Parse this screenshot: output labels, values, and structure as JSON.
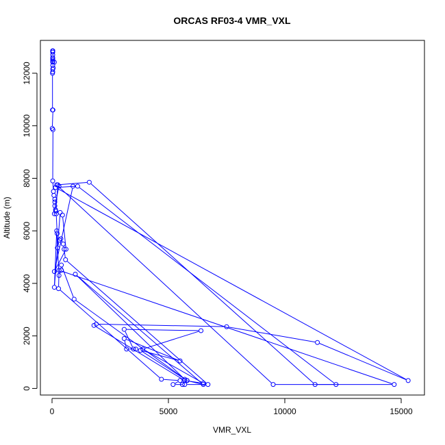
{
  "chart_data": {
    "type": "scatter",
    "title": "ORCAS RF03-4 VMR_VXL",
    "xlabel": "VMR_VXL",
    "ylabel": "Altitude (m)",
    "xlim": [
      -500,
      16000
    ],
    "ylim": [
      -250,
      13250
    ],
    "xticks": [
      0,
      5000,
      10000,
      15000
    ],
    "xtick_labels": [
      "0",
      "5000",
      "10000",
      "15000"
    ],
    "yticks": [
      0,
      2000,
      4000,
      6000,
      8000,
      10000,
      12000
    ],
    "ytick_labels": [
      "0",
      "2000",
      "4000",
      "6000",
      "8000",
      "10000",
      "12000"
    ],
    "grid": false,
    "legend": "none",
    "colors": {
      "series": "#0000ff",
      "axis": "#000000",
      "background": "#ffffff"
    },
    "series": [
      {
        "style": "lines+open-circles",
        "x": [
          30,
          30,
          30,
          30,
          30,
          30,
          30,
          30,
          30,
          30,
          30,
          30,
          30,
          30,
          30,
          30,
          30,
          30,
          30,
          100,
          30,
          50,
          30,
          30,
          20,
          20,
          40,
          10,
          40,
          30,
          60,
          80,
          120,
          120,
          150,
          160,
          250,
          300,
          120,
          100,
          180,
          220,
          230,
          320,
          380,
          480,
          520,
          580,
          6700,
          5700,
          5200,
          5500,
          4700,
          280,
          300,
          14700,
          11300,
          1600,
          200,
          9500,
          12200,
          1100,
          150,
          15300,
          11400,
          7500,
          1900,
          1800,
          5700,
          6500,
          3900,
          6400,
          3100,
          3500,
          3600,
          3200,
          3100,
          5500,
          3800,
          5800,
          5600,
          5800,
          5700,
          1000,
          6500,
          5800,
          950,
          400,
          400,
          300,
          200,
          100,
          350,
          450,
          600,
          100,
          900
        ],
        "y": [
          12850,
          12850,
          12850,
          12850,
          12850,
          12850,
          12850,
          12850,
          12850,
          12850,
          12850,
          12850,
          12800,
          12700,
          12600,
          12550,
          12500,
          12450,
          12420,
          12420,
          12300,
          12200,
          12150,
          12050,
          12000,
          10600,
          10600,
          9900,
          9850,
          7900,
          7500,
          7350,
          7200,
          7100,
          6800,
          6750,
          7750,
          7700,
          6950,
          6650,
          6650,
          5900,
          5350,
          5650,
          5700,
          5500,
          5300,
          4900,
          150,
          150,
          150,
          300,
          350,
          3800,
          4500,
          150,
          150,
          7850,
          7750,
          150,
          150,
          7700,
          7650,
          300,
          1750,
          2350,
          2450,
          2400,
          300,
          200,
          1500,
          2200,
          2250,
          1500,
          1500,
          1500,
          1900,
          1050,
          1450,
          300,
          150,
          300,
          350,
          4350,
          150,
          300,
          3400,
          4700,
          4500,
          4300,
          6000,
          3850,
          6700,
          6600,
          5300,
          4450,
          7700
        ]
      }
    ]
  }
}
